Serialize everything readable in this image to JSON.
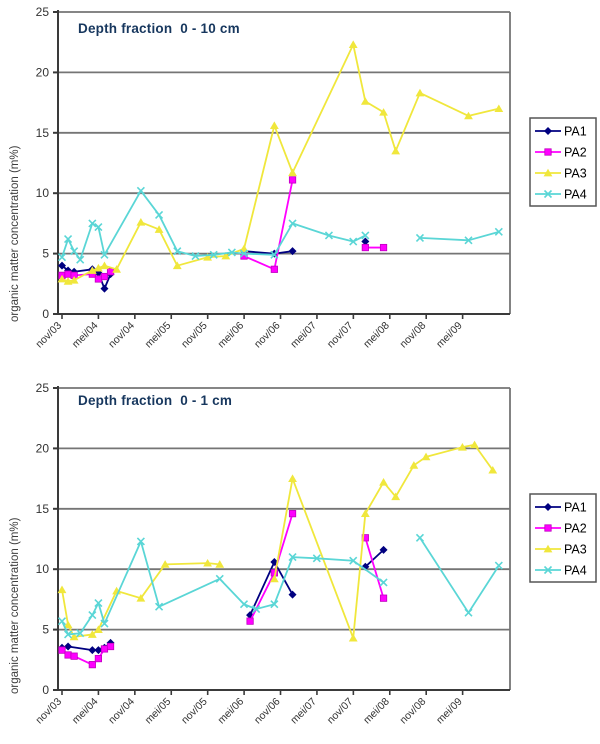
{
  "figure": {
    "y_axis_title": "organic matter concentration (m%)",
    "x_tick_labels": [
      "nov/03",
      "mei/04",
      "nov/04",
      "mei/05",
      "nov/05",
      "mei/06",
      "nov/06",
      "mei/07",
      "nov/07",
      "mei/08",
      "nov/08",
      "mei/09"
    ],
    "y_tick_labels": [
      "0",
      "5",
      "10",
      "15",
      "20",
      "25"
    ]
  },
  "colors": {
    "pa1": "#000080",
    "pa2": "#FF00FF",
    "pa3": "#F0E73C",
    "pa4": "#5AD6D6",
    "grid": "#757575",
    "axis": "#3a3a3a",
    "title": "#17375E",
    "tick_text": "#333333",
    "legend_border": "#555555"
  },
  "legend": {
    "position": "right",
    "entries": [
      "PA1",
      "PA2",
      "PA3",
      "PA4"
    ]
  },
  "chart_data": [
    {
      "type": "line",
      "title": "Depth fraction  0 - 10 cm",
      "xlabel": "",
      "ylabel": "organic matter concentration (m%)",
      "ylim": [
        0,
        25
      ],
      "x_unit": "months since nov/03 (axis labeled every 6 months)",
      "grid": true,
      "legend_position": "right",
      "series": [
        {
          "name": "PA1",
          "marker": "diamond",
          "color": "#000080",
          "segments": [
            [
              [
                0,
                4.0
              ],
              [
                1,
                3.6
              ],
              [
                2,
                3.5
              ],
              [
                5,
                3.7
              ],
              [
                6,
                3.4
              ],
              [
                7,
                2.1
              ],
              [
                8,
                3.3
              ]
            ],
            [
              [
                30,
                5.2
              ],
              [
                35,
                5.0
              ],
              [
                38,
                5.2
              ]
            ],
            [
              [
                50,
                6.0
              ]
            ]
          ]
        },
        {
          "name": "PA2",
          "marker": "square",
          "color": "#FF00FF",
          "segments": [
            [
              [
                0,
                3.2
              ],
              [
                1,
                3.3
              ],
              [
                2,
                3.2
              ],
              [
                5,
                3.3
              ],
              [
                6,
                2.9
              ],
              [
                7,
                3.1
              ],
              [
                8,
                3.5
              ]
            ],
            [
              [
                30,
                4.8
              ],
              [
                35,
                3.7
              ],
              [
                38,
                11.1
              ]
            ],
            [
              [
                50,
                5.5
              ],
              [
                53,
                5.5
              ]
            ]
          ]
        },
        {
          "name": "PA3",
          "marker": "triangle",
          "color": "#F0E73C",
          "segments": [
            [
              [
                0,
                2.9
              ],
              [
                1,
                2.7
              ],
              [
                2,
                2.8
              ],
              [
                5,
                3.6
              ],
              [
                6,
                3.8
              ],
              [
                7,
                4.0
              ],
              [
                9,
                3.7
              ],
              [
                13,
                7.6
              ],
              [
                16,
                7.0
              ],
              [
                19,
                4.0
              ],
              [
                24,
                4.7
              ],
              [
                27,
                4.8
              ],
              [
                30,
                5.4
              ],
              [
                35,
                15.6
              ],
              [
                38,
                11.7
              ],
              [
                48,
                22.3
              ],
              [
                50,
                17.6
              ],
              [
                53,
                16.7
              ],
              [
                55,
                13.5
              ],
              [
                59,
                18.3
              ],
              [
                67,
                16.4
              ],
              [
                72,
                17.0
              ]
            ]
          ]
        },
        {
          "name": "PA4",
          "marker": "x",
          "color": "#5AD6D6",
          "segments": [
            [
              [
                0,
                4.7
              ],
              [
                1,
                6.2
              ],
              [
                2,
                5.2
              ],
              [
                3,
                4.5
              ],
              [
                5,
                7.5
              ],
              [
                6,
                7.2
              ],
              [
                7,
                4.9
              ],
              [
                13,
                10.2
              ],
              [
                16,
                8.2
              ],
              [
                19,
                5.2
              ],
              [
                22,
                4.8
              ],
              [
                25,
                4.9
              ],
              [
                28,
                5.1
              ],
              [
                30,
                5.0
              ],
              [
                35,
                4.9
              ],
              [
                38,
                7.5
              ],
              [
                44,
                6.5
              ],
              [
                48,
                6.0
              ],
              [
                50,
                6.5
              ]
            ],
            [
              [
                59,
                6.3
              ],
              [
                67,
                6.1
              ],
              [
                72,
                6.8
              ]
            ]
          ]
        }
      ]
    },
    {
      "type": "line",
      "title": "Depth fraction  0 - 1 cm",
      "xlabel": "",
      "ylabel": "organic matter concentration (m%)",
      "ylim": [
        0,
        25
      ],
      "x_unit": "months since nov/03 (axis labeled every 6 months)",
      "grid": true,
      "legend_position": "right",
      "series": [
        {
          "name": "PA1",
          "marker": "diamond",
          "color": "#000080",
          "segments": [
            [
              [
                0,
                3.5
              ],
              [
                1,
                3.6
              ],
              [
                5,
                3.3
              ],
              [
                6,
                3.3
              ],
              [
                7,
                3.5
              ],
              [
                8,
                3.9
              ]
            ],
            [
              [
                31,
                6.2
              ],
              [
                35,
                10.6
              ],
              [
                38,
                7.9
              ]
            ],
            [
              [
                50,
                10.2
              ],
              [
                53,
                11.6
              ]
            ]
          ]
        },
        {
          "name": "PA2",
          "marker": "square",
          "color": "#FF00FF",
          "segments": [
            [
              [
                0,
                3.3
              ],
              [
                1,
                2.9
              ],
              [
                2,
                2.8
              ],
              [
                5,
                2.1
              ],
              [
                6,
                2.6
              ],
              [
                7,
                3.4
              ],
              [
                8,
                3.6
              ]
            ],
            [
              [
                31,
                5.7
              ],
              [
                35,
                9.7
              ],
              [
                38,
                14.6
              ]
            ],
            [
              [
                50,
                12.6
              ],
              [
                53,
                7.6
              ]
            ]
          ]
        },
        {
          "name": "PA3",
          "marker": "triangle",
          "color": "#F0E73C",
          "segments": [
            [
              [
                0,
                8.3
              ],
              [
                1,
                5.4
              ],
              [
                2,
                4.4
              ],
              [
                5,
                4.6
              ],
              [
                6,
                5.0
              ],
              [
                9,
                8.2
              ],
              [
                13,
                7.6
              ],
              [
                17,
                10.4
              ],
              [
                24,
                10.5
              ],
              [
                26,
                10.4
              ]
            ],
            [
              [
                35,
                9.2
              ],
              [
                38,
                17.5
              ],
              [
                48,
                4.3
              ],
              [
                50,
                14.6
              ],
              [
                53,
                17.2
              ],
              [
                55,
                16.0
              ],
              [
                58,
                18.6
              ],
              [
                60,
                19.3
              ],
              [
                66,
                20.1
              ],
              [
                68,
                20.3
              ],
              [
                71,
                18.2
              ]
            ]
          ]
        },
        {
          "name": "PA4",
          "marker": "x",
          "color": "#5AD6D6",
          "segments": [
            [
              [
                0,
                5.7
              ],
              [
                1,
                4.6
              ],
              [
                3,
                4.7
              ],
              [
                5,
                6.2
              ],
              [
                6,
                7.2
              ],
              [
                7,
                5.5
              ],
              [
                13,
                12.3
              ],
              [
                16,
                6.9
              ],
              [
                26,
                9.2
              ],
              [
                30,
                7.1
              ],
              [
                32,
                6.7
              ],
              [
                35,
                7.1
              ],
              [
                38,
                11.0
              ],
              [
                42,
                10.9
              ],
              [
                48,
                10.7
              ],
              [
                53,
                8.9
              ]
            ],
            [
              [
                59,
                12.6
              ],
              [
                67,
                6.4
              ],
              [
                72,
                10.3
              ]
            ]
          ]
        }
      ]
    }
  ]
}
